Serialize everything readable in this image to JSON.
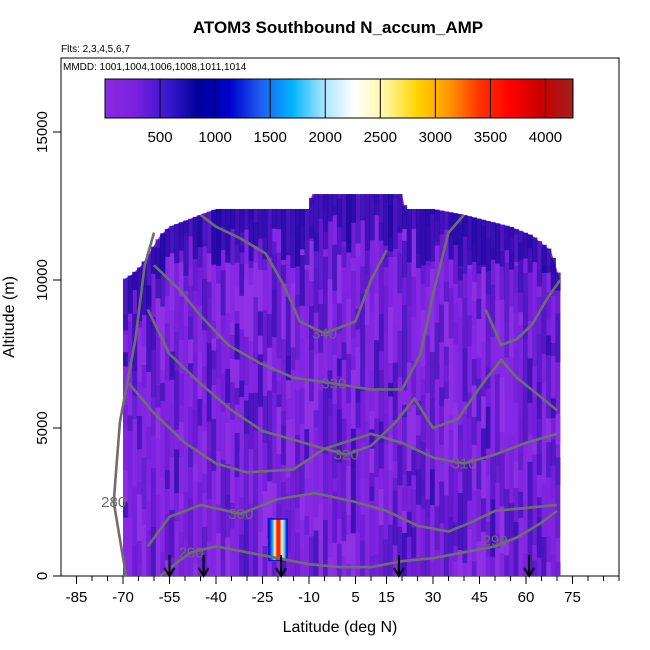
{
  "chart_data": {
    "type": "heatmap",
    "title": "ATOM3 Southbound N_accum_AMP",
    "flights_label": "Flts: 2,3,4,5,6,7",
    "dates_label": "MMDD: 1001,1004,1006,1008,1011,1014",
    "xlabel": "Latitude (deg N)",
    "ylabel": "Altitude (m)",
    "xlim": [
      -90,
      90
    ],
    "ylim": [
      0,
      17500
    ],
    "x_ticks": [
      -85,
      -70,
      -55,
      -40,
      -25,
      -10,
      5,
      15,
      30,
      45,
      60,
      75
    ],
    "y_ticks": [
      0,
      5000,
      10000,
      15000
    ],
    "colorbar": {
      "range": [
        0,
        4250
      ],
      "ticks": [
        500,
        1000,
        1500,
        2000,
        2500,
        3000,
        3500,
        4000
      ],
      "colors": [
        "#8a2be2",
        "#7a1fe0",
        "#3a18d0",
        "#00009a",
        "#0000cd",
        "#1e5ef0",
        "#00b4ff",
        "#a8e4ff",
        "#ffffff",
        "#fff6a0",
        "#ffd400",
        "#ff9900",
        "#ff3300",
        "#ff0000",
        "#c80000",
        "#a02020"
      ]
    },
    "coverage": {
      "lat_range": [
        -70,
        71
      ],
      "top_altitude": [
        [
          -70,
          10000
        ],
        [
          -67,
          10200
        ],
        [
          -64,
          10500
        ],
        [
          -61,
          11000
        ],
        [
          -58,
          11500
        ],
        [
          -55,
          11800
        ],
        [
          -50,
          12000
        ],
        [
          -40,
          12400
        ],
        [
          -20,
          12400
        ],
        [
          -10,
          12400
        ],
        [
          -9,
          12900
        ],
        [
          20,
          12900
        ],
        [
          21,
          12400
        ],
        [
          30,
          12400
        ],
        [
          40,
          12200
        ],
        [
          55,
          11800
        ],
        [
          62,
          11500
        ],
        [
          68,
          11000
        ],
        [
          71,
          10000
        ]
      ]
    },
    "hotspot": {
      "lat": -20,
      "alt_range": [
        1000,
        1500
      ],
      "value_range": [
        2000,
        4200
      ]
    },
    "contours": [
      {
        "label": "280",
        "label_at": [
          -73,
          2500
        ],
        "points": [
          [
            -69,
            0
          ],
          [
            -73,
            2500
          ],
          [
            -71,
            5200
          ],
          [
            -66,
            8000
          ],
          [
            -63,
            10500
          ],
          [
            -60,
            11600
          ]
        ]
      },
      {
        "label": "290",
        "label_at": [
          -48,
          800
        ],
        "points": [
          [
            -58,
            0
          ],
          [
            -52,
            500
          ],
          [
            -48,
            800
          ],
          [
            -40,
            1000
          ],
          [
            -30,
            800
          ],
          [
            -20,
            600
          ],
          [
            -10,
            400
          ],
          [
            0,
            300
          ],
          [
            10,
            300
          ],
          [
            20,
            500
          ],
          [
            30,
            600
          ],
          [
            40,
            800
          ],
          [
            50,
            1000
          ],
          [
            57,
            1300
          ],
          [
            65,
            1800
          ],
          [
            70,
            2200
          ]
        ]
      },
      {
        "label": "290",
        "label_at": [
          50,
          1200
        ],
        "points": []
      },
      {
        "label": "300",
        "label_at": [
          -32,
          2100
        ],
        "points": [
          [
            -62,
            1000
          ],
          [
            -55,
            2000
          ],
          [
            -45,
            2400
          ],
          [
            -32,
            2100
          ],
          [
            -20,
            2600
          ],
          [
            -8,
            2800
          ],
          [
            5,
            2500
          ],
          [
            15,
            2200
          ],
          [
            25,
            1700
          ],
          [
            35,
            1500
          ],
          [
            42,
            1800
          ],
          [
            50,
            2200
          ],
          [
            60,
            2300
          ],
          [
            70,
            2400
          ]
        ]
      },
      {
        "label": "310",
        "label_at": [
          40,
          3800
        ],
        "points": [
          [
            -68,
            6500
          ],
          [
            -60,
            5500
          ],
          [
            -50,
            4500
          ],
          [
            -40,
            3800
          ],
          [
            -30,
            3500
          ],
          [
            -15,
            3600
          ],
          [
            -5,
            4300
          ],
          [
            10,
            4800
          ],
          [
            20,
            4500
          ],
          [
            30,
            4000
          ],
          [
            40,
            3800
          ],
          [
            50,
            4100
          ],
          [
            60,
            4500
          ],
          [
            70,
            4800
          ]
        ]
      },
      {
        "label": "320",
        "label_at": [
          2,
          4100
        ],
        "points": [
          [
            -62,
            9000
          ],
          [
            -55,
            7500
          ],
          [
            -45,
            6500
          ],
          [
            -35,
            5600
          ],
          [
            -25,
            4900
          ],
          [
            -15,
            4600
          ],
          [
            -5,
            4300
          ],
          [
            2,
            4100
          ],
          [
            10,
            4400
          ],
          [
            18,
            5200
          ],
          [
            24,
            6000
          ],
          [
            30,
            5000
          ],
          [
            38,
            5300
          ],
          [
            46,
            6500
          ],
          [
            52,
            7300
          ],
          [
            57,
            6700
          ],
          [
            63,
            6200
          ],
          [
            70,
            5600
          ]
        ]
      },
      {
        "label": "330",
        "label_at": [
          -2,
          6500
        ],
        "points": [
          [
            -60,
            10500
          ],
          [
            -52,
            9700
          ],
          [
            -45,
            8800
          ],
          [
            -36,
            7800
          ],
          [
            -26,
            7200
          ],
          [
            -15,
            6700
          ],
          [
            -2,
            6500
          ],
          [
            10,
            6300
          ],
          [
            20,
            6300
          ],
          [
            26,
            7500
          ],
          [
            30,
            9500
          ],
          [
            35,
            11600
          ],
          [
            40,
            12200
          ]
        ]
      },
      {
        "label": "340",
        "label_at": [
          -5,
          8200
        ],
        "points": [
          [
            -45,
            12200
          ],
          [
            -40,
            11800
          ],
          [
            -32,
            11400
          ],
          [
            -24,
            10900
          ],
          [
            -18,
            9800
          ],
          [
            -13,
            8600
          ],
          [
            -5,
            8200
          ],
          [
            5,
            8600
          ],
          [
            10,
            10000
          ],
          [
            15,
            11000
          ]
        ]
      },
      {
        "label": "",
        "label_at": [
          0,
          0
        ],
        "points": [
          [
            47,
            9000
          ],
          [
            52,
            7800
          ],
          [
            57,
            8000
          ],
          [
            62,
            8500
          ],
          [
            67,
            9400
          ],
          [
            71,
            10000
          ]
        ]
      }
    ],
    "arrows_lat": [
      -55,
      -44,
      -19,
      19,
      61
    ]
  }
}
